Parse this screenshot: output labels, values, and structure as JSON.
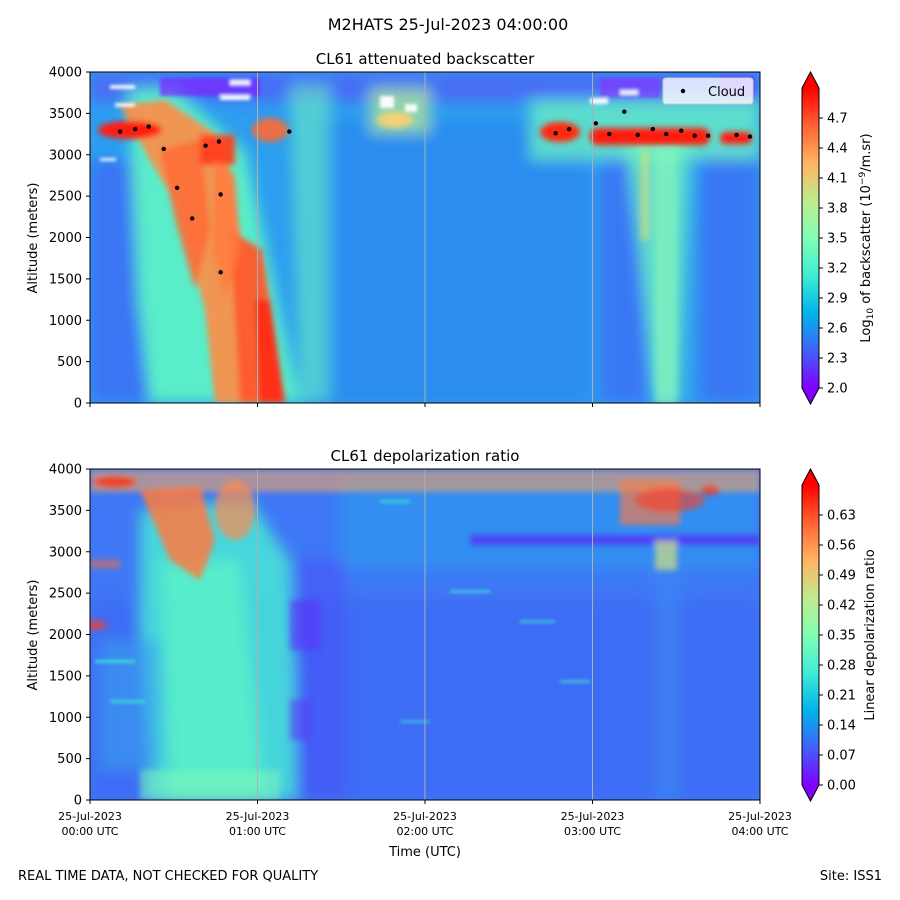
{
  "figure": {
    "suptitle": "M2HATS 25-Jul-2023 04:00:00",
    "footer_left": "REAL TIME DATA, NOT CHECKED FOR QUALITY",
    "footer_right": "Site: ISS1"
  },
  "chart_data": [
    {
      "type": "heatmap",
      "title": "CL61 attenuated backscatter",
      "ylabel": "Altitude (meters)",
      "ylim": [
        0,
        4000
      ],
      "yticks": [
        0,
        500,
        1000,
        1500,
        2000,
        2500,
        3000,
        3500,
        4000
      ],
      "x_hours": [
        0,
        4
      ],
      "x_grid_hours": [
        1,
        2,
        3
      ],
      "colormap": "rainbow",
      "colorbar": {
        "label_prefix": "Log",
        "label_sub": "10",
        "label_mid": " of backscatter (10",
        "label_sup": "−9",
        "label_suffix": "/m.sr)",
        "range": [
          2.0,
          5.0
        ],
        "ticks": [
          "2.0",
          "2.3",
          "2.6",
          "2.9",
          "3.2",
          "3.5",
          "3.8",
          "4.1",
          "4.4",
          "4.7"
        ]
      },
      "legend": {
        "label": "Cloud",
        "position": "top-right"
      },
      "cloud_points": [
        {
          "t": 0.18,
          "alt": 3280
        },
        {
          "t": 0.27,
          "alt": 3310
        },
        {
          "t": 0.35,
          "alt": 3340
        },
        {
          "t": 0.44,
          "alt": 3070
        },
        {
          "t": 0.52,
          "alt": 2600
        },
        {
          "t": 0.61,
          "alt": 2230
        },
        {
          "t": 0.69,
          "alt": 3110
        },
        {
          "t": 0.77,
          "alt": 3160
        },
        {
          "t": 0.78,
          "alt": 2520
        },
        {
          "t": 0.78,
          "alt": 1580
        },
        {
          "t": 1.19,
          "alt": 3280
        },
        {
          "t": 2.78,
          "alt": 3260
        },
        {
          "t": 2.86,
          "alt": 3310
        },
        {
          "t": 3.02,
          "alt": 3380
        },
        {
          "t": 3.1,
          "alt": 3250
        },
        {
          "t": 3.19,
          "alt": 3520
        },
        {
          "t": 3.27,
          "alt": 3240
        },
        {
          "t": 3.36,
          "alt": 3310
        },
        {
          "t": 3.44,
          "alt": 3250
        },
        {
          "t": 3.53,
          "alt": 3290
        },
        {
          "t": 3.61,
          "alt": 3230
        },
        {
          "t": 3.69,
          "alt": 3230
        },
        {
          "t": 3.86,
          "alt": 3240
        },
        {
          "t": 3.94,
          "alt": 3220
        }
      ]
    },
    {
      "type": "heatmap",
      "title": "CL61 depolarization ratio",
      "ylabel": "Altitude (meters)",
      "xlabel": "Time (UTC)",
      "ylim": [
        0,
        4000
      ],
      "yticks": [
        0,
        500,
        1000,
        1500,
        2000,
        2500,
        3000,
        3500,
        4000
      ],
      "x_hours": [
        0,
        4
      ],
      "x_grid_hours": [
        1,
        2,
        3
      ],
      "xticks": [
        {
          "hour": 0,
          "line1": "25-Jul-2023",
          "line2": "00:00 UTC"
        },
        {
          "hour": 1,
          "line1": "25-Jul-2023",
          "line2": "01:00 UTC"
        },
        {
          "hour": 2,
          "line1": "25-Jul-2023",
          "line2": "02:00 UTC"
        },
        {
          "hour": 3,
          "line1": "25-Jul-2023",
          "line2": "03:00 UTC"
        },
        {
          "hour": 4,
          "line1": "25-Jul-2023",
          "line2": "04:00 UTC"
        }
      ],
      "colormap": "rainbow",
      "colorbar": {
        "label": "Linear depolarization ratio",
        "range": [
          0.0,
          0.7
        ],
        "ticks": [
          "0.00",
          "0.07",
          "0.14",
          "0.21",
          "0.28",
          "0.35",
          "0.42",
          "0.49",
          "0.56",
          "0.63"
        ]
      }
    }
  ]
}
